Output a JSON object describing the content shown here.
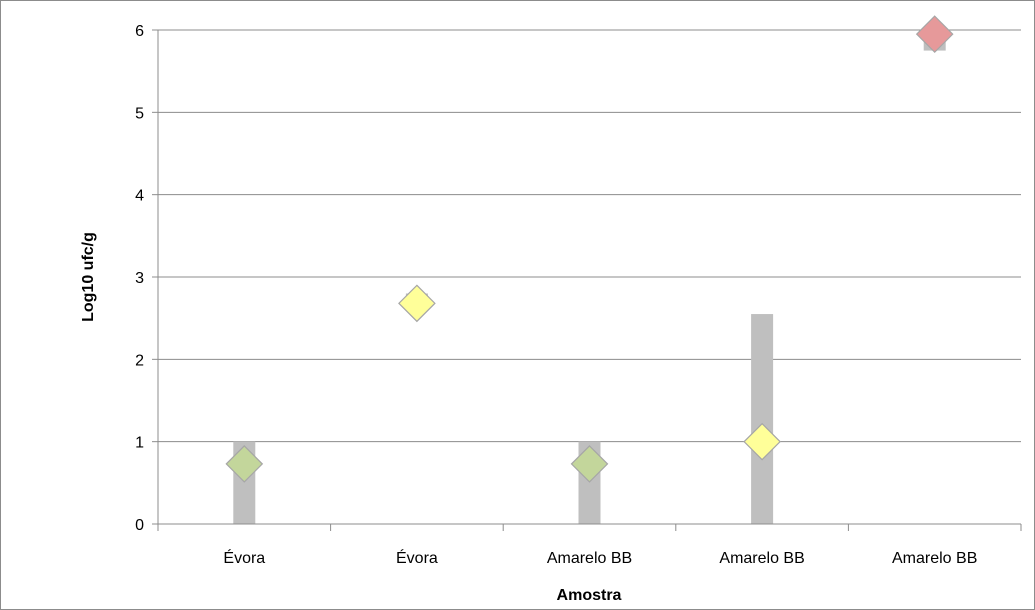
{
  "chart_data": {
    "type": "bar",
    "title": "",
    "xlabel": "Amostra",
    "ylabel": "Log10 ufc/g",
    "categories": [
      "Évora",
      "Évora",
      "Amarelo BB",
      "Amarelo BB",
      "Amarelo BB"
    ],
    "ylim": [
      0,
      6
    ],
    "yticks": [
      0,
      1,
      2,
      3,
      4,
      5,
      6
    ],
    "grid": true,
    "legend": "none",
    "range_bars": [
      {
        "low": 0,
        "high": 1.0
      },
      {
        "low": 2.6,
        "high": 2.8
      },
      {
        "low": 0,
        "high": 1.0
      },
      {
        "low": 0,
        "high": 2.55
      },
      {
        "low": 5.75,
        "high": 5.95
      }
    ],
    "points": [
      {
        "value": 0.73,
        "color": "#c3d69b"
      },
      {
        "value": 2.68,
        "color": "#ffff99"
      },
      {
        "value": 0.73,
        "color": "#c3d69b"
      },
      {
        "value": 1.0,
        "color": "#ffff99"
      },
      {
        "value": 5.95,
        "color": "#e6999a"
      }
    ],
    "colors": {
      "bar": "#bfbfbf",
      "grid": "#8c8c8c",
      "axis": "#8c8c8c",
      "point_outline": "#a6a6a6"
    }
  }
}
